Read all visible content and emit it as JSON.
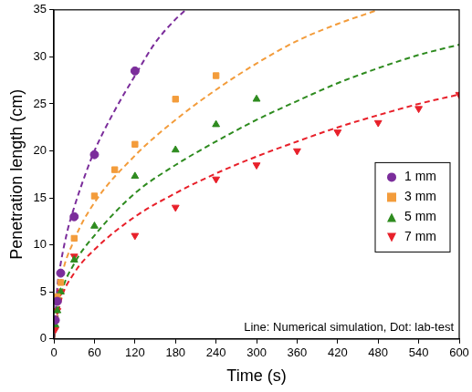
{
  "chart_data": {
    "type": "scatter",
    "x_label": "Time (s)",
    "y_label": "Penetration length (cm)",
    "annotation": "Line: Numerical simulation, Dot: lab-test",
    "xlim": [
      0,
      600
    ],
    "xticks": [
      0,
      60,
      120,
      180,
      240,
      300,
      360,
      420,
      480,
      540,
      600
    ],
    "ylim": [
      0,
      35
    ],
    "yticks": [
      0,
      5,
      10,
      15,
      20,
      25,
      30,
      35
    ],
    "grid": false,
    "legend": "right",
    "series": [
      {
        "name": "1 mm",
        "color": "#7b2d9b",
        "marker": "circle",
        "x": [
          2,
          5,
          10,
          30,
          60,
          120
        ],
        "values": [
          2,
          4,
          7,
          13,
          19.6,
          28.5
        ],
        "simulation": {
          "line_style": "dashed",
          "x": [
            0,
            5,
            10,
            20,
            30,
            45,
            60,
            90,
            120,
            150,
            180,
            195
          ],
          "values": [
            0,
            5.5,
            8,
            11.5,
            14,
            17.2,
            20,
            24.3,
            28,
            31.5,
            34,
            35
          ]
        }
      },
      {
        "name": "3 mm",
        "color": "#f39c3b",
        "marker": "square",
        "x": [
          2,
          5,
          10,
          30,
          60,
          90,
          120,
          180,
          240
        ],
        "values": [
          2,
          4.5,
          6,
          10.7,
          15.2,
          18,
          20.7,
          25.5,
          28
        ],
        "simulation": {
          "line_style": "dashed",
          "x": [
            0,
            10,
            30,
            60,
            120,
            180,
            240,
            300,
            360,
            420,
            480
          ],
          "values": [
            0,
            6,
            10.5,
            14.5,
            19.5,
            23.3,
            26.5,
            29.3,
            31.7,
            33.5,
            35
          ]
        }
      },
      {
        "name": "5 mm",
        "color": "#2e8b1f",
        "marker": "triangle",
        "x": [
          2,
          5,
          10,
          30,
          60,
          120,
          180,
          240,
          300
        ],
        "values": [
          1.5,
          3,
          5,
          8.4,
          12,
          17.3,
          20.1,
          22.8,
          25.5
        ],
        "simulation": {
          "line_style": "dashed",
          "x": [
            0,
            10,
            30,
            60,
            120,
            180,
            240,
            300,
            360,
            420,
            480,
            540,
            600
          ],
          "values": [
            0,
            4.5,
            8,
            11,
            15.5,
            18.5,
            21,
            23.3,
            25.3,
            27.2,
            28.8,
            30.2,
            31.3
          ]
        }
      },
      {
        "name": "7 mm",
        "color": "#e8202a",
        "marker": "triangle_down",
        "x": [
          2,
          5,
          10,
          30,
          120,
          180,
          240,
          300,
          360,
          420,
          480,
          540,
          600
        ],
        "values": [
          1,
          3,
          5,
          8.8,
          11,
          14,
          17,
          18.5,
          20,
          22,
          23,
          24.5,
          26
        ],
        "simulation": {
          "line_style": "dashed",
          "x": [
            0,
            10,
            30,
            60,
            120,
            180,
            240,
            300,
            360,
            420,
            480,
            540,
            600
          ],
          "values": [
            0,
            4,
            7,
            9.5,
            13,
            15.5,
            17.6,
            19.4,
            21,
            22.5,
            23.8,
            25,
            26
          ]
        }
      }
    ]
  }
}
